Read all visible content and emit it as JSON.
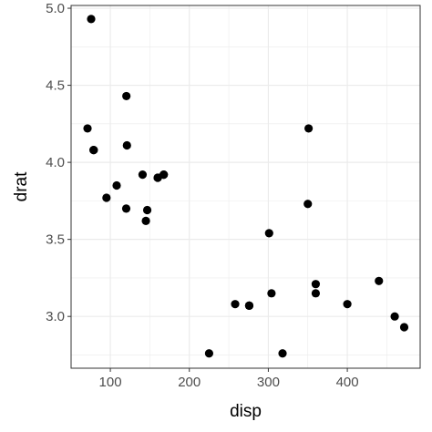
{
  "chart_data": {
    "type": "scatter",
    "title": "",
    "xlabel": "disp",
    "ylabel": "drat",
    "xlim": [
      50.3,
      492.2
    ],
    "ylim": [
      2.664,
      5.018
    ],
    "x_ticks": [
      100,
      200,
      300,
      400
    ],
    "x_tick_labels": [
      "100",
      "200",
      "300",
      "400"
    ],
    "y_ticks": [
      3.0,
      3.5,
      4.0,
      4.5,
      5.0
    ],
    "y_tick_labels": [
      "3.0",
      "3.5",
      "4.0",
      "4.5",
      "5.0"
    ],
    "grid": true,
    "theme": "bw",
    "point_color": "#000000",
    "gridline_color": "#ebebeb",
    "panel_border_color": "#333333",
    "points": [
      {
        "x": 160,
        "y": 3.9
      },
      {
        "x": 160,
        "y": 3.9
      },
      {
        "x": 108,
        "y": 3.85
      },
      {
        "x": 258,
        "y": 3.08
      },
      {
        "x": 360,
        "y": 3.15
      },
      {
        "x": 225,
        "y": 2.76
      },
      {
        "x": 360,
        "y": 3.21
      },
      {
        "x": 146.7,
        "y": 3.69
      },
      {
        "x": 140.8,
        "y": 3.92
      },
      {
        "x": 167.6,
        "y": 3.92
      },
      {
        "x": 167.6,
        "y": 3.92
      },
      {
        "x": 275.8,
        "y": 3.07
      },
      {
        "x": 275.8,
        "y": 3.07
      },
      {
        "x": 275.8,
        "y": 3.07
      },
      {
        "x": 472,
        "y": 2.93
      },
      {
        "x": 460,
        "y": 3.0
      },
      {
        "x": 440,
        "y": 3.23
      },
      {
        "x": 78.7,
        "y": 4.08
      },
      {
        "x": 75.7,
        "y": 4.93
      },
      {
        "x": 71.1,
        "y": 4.22
      },
      {
        "x": 120.1,
        "y": 3.7
      },
      {
        "x": 318,
        "y": 2.76
      },
      {
        "x": 304,
        "y": 3.15
      },
      {
        "x": 350,
        "y": 3.73
      },
      {
        "x": 400,
        "y": 3.08
      },
      {
        "x": 79,
        "y": 4.08
      },
      {
        "x": 120.3,
        "y": 4.43
      },
      {
        "x": 95.1,
        "y": 3.77
      },
      {
        "x": 351,
        "y": 4.22
      },
      {
        "x": 145,
        "y": 3.62
      },
      {
        "x": 301,
        "y": 3.54
      },
      {
        "x": 121,
        "y": 4.11
      }
    ]
  }
}
